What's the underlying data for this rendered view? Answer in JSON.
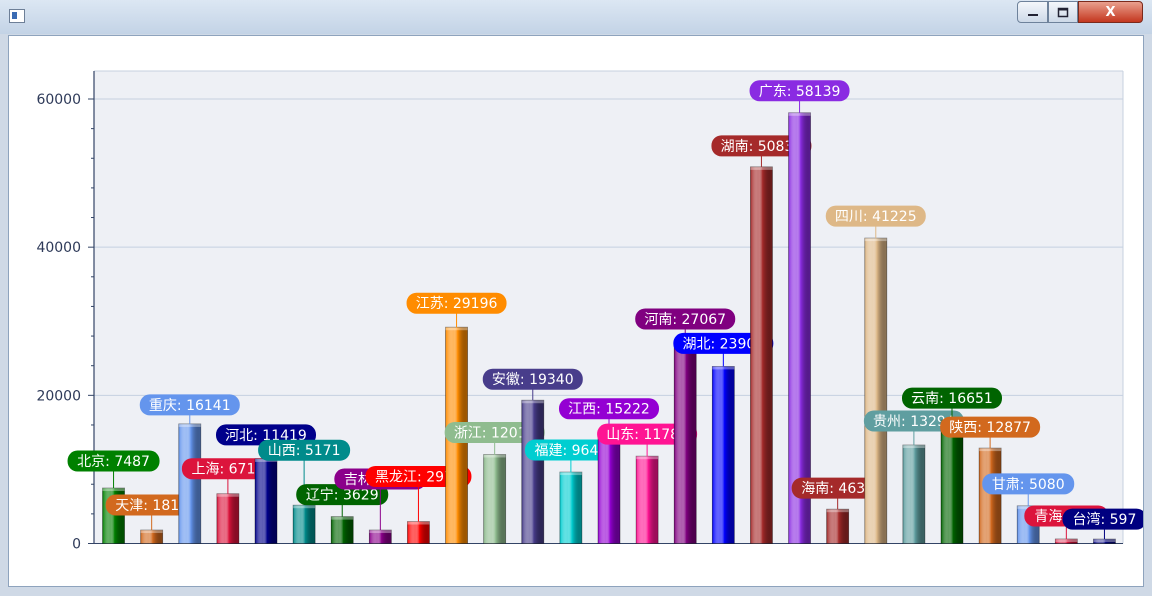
{
  "window": {
    "close_glyph": "X",
    "icons": [
      "app-icon",
      "minimize-icon",
      "maximize-icon",
      "close-icon"
    ]
  },
  "chart_data": {
    "type": "bar",
    "categories": [
      "北京",
      "天津",
      "重庆",
      "上海",
      "河北",
      "山西",
      "辽宁",
      "吉林",
      "黑龙江",
      "江苏",
      "浙江",
      "安徽",
      "福建",
      "江西",
      "山东",
      "河南",
      "湖北",
      "湖南",
      "广东",
      "海南",
      "四川",
      "贵州",
      "云南",
      "陕西",
      "甘肃",
      "青海",
      "台湾"
    ],
    "values": [
      7487,
      1818,
      16141,
      6717,
      11419,
      5171,
      3629,
      1818,
      2970,
      29196,
      12017,
      19340,
      9643,
      15222,
      11788,
      27067,
      23904,
      50838,
      58139,
      4633,
      41225,
      13294,
      16651,
      12877,
      5080,
      610,
      597
    ],
    "colors": [
      "#008000",
      "#d2691e",
      "#6495ed",
      "#dc143c",
      "#00008b",
      "#008b8b",
      "#006400",
      "#8b008b",
      "#ff0000",
      "#ff8c00",
      "#8fbc8f",
      "#483d8b",
      "#00ced1",
      "#9400d3",
      "#ff1493",
      "#800080",
      "#0000ff",
      "#a52a2a",
      "#8a2be2",
      "#a52a2a",
      "#deb887",
      "#5f9ea0",
      "#006400",
      "#d2691e",
      "#6495ed",
      "#dc143c",
      "#000080"
    ],
    "labels": [
      "北京: 7487",
      "天津: 1818",
      "重庆: 16141",
      "上海: 6717",
      "河北: 11419",
      "山西: 5171",
      "辽宁: 3629",
      "吉林: 1818",
      "黑龙江: 2970",
      "江苏: 29196",
      "浙江: 12017",
      "安徽: 19340",
      "福建: 9643",
      "江西: 15222",
      "山东: 11788",
      "河南: 27067",
      "湖北: 23904",
      "湖南: 50838",
      "广东: 58139",
      "海南: 4633",
      "四川: 41225",
      "贵州: 13294",
      "云南: 16651",
      "陕西: 12877",
      "甘肃: 5080",
      "青海: 610",
      "台湾: 597"
    ],
    "yticks": [
      "0",
      "20000",
      "40000",
      "60000"
    ],
    "ylim": [
      0,
      64000
    ],
    "grid": true
  }
}
